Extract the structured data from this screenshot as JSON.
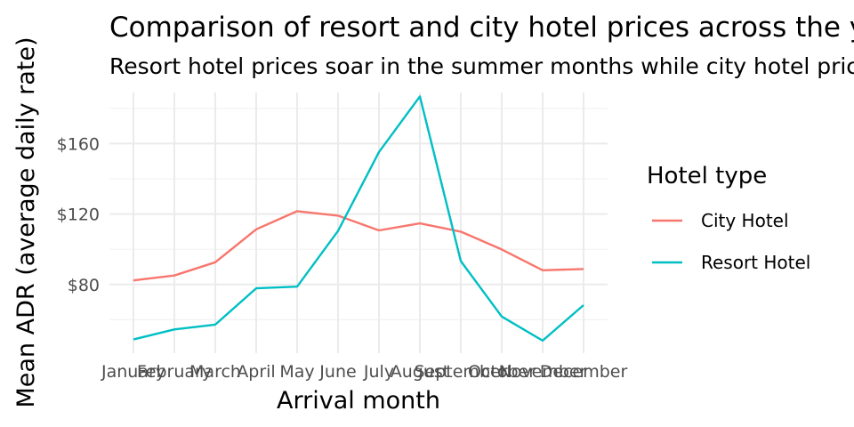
{
  "chart_data": {
    "type": "line",
    "title": "Comparison of resort and city hotel prices across the year",
    "subtitle": "Resort hotel prices soar in the summer months while city hotel prices remain relatively constant throughout the year",
    "xlabel": "Arrival month",
    "ylabel": "Mean ADR (average daily rate)",
    "categories": [
      "January",
      "February",
      "March",
      "April",
      "May",
      "June",
      "July",
      "August",
      "September",
      "October",
      "November",
      "December"
    ],
    "ylim": [
      41,
      189
    ],
    "yticks": [
      80,
      120,
      160
    ],
    "ytick_labels": [
      "$80",
      "$120",
      "$160"
    ],
    "grid": true,
    "legend": {
      "title": "Hotel type",
      "position": "right"
    },
    "series": [
      {
        "name": "City Hotel",
        "color": "#F8766D",
        "values": [
          82.3,
          85.1,
          92.6,
          111.3,
          121.6,
          119.1,
          110.7,
          114.7,
          110.0,
          99.9,
          88.1,
          88.8
        ]
      },
      {
        "name": "Resort Hotel",
        "color": "#00BFC4",
        "values": [
          48.8,
          54.5,
          57.2,
          77.8,
          78.8,
          110.4,
          155.2,
          186.8,
          93.3,
          61.8,
          48.1,
          68.3
        ]
      }
    ]
  }
}
